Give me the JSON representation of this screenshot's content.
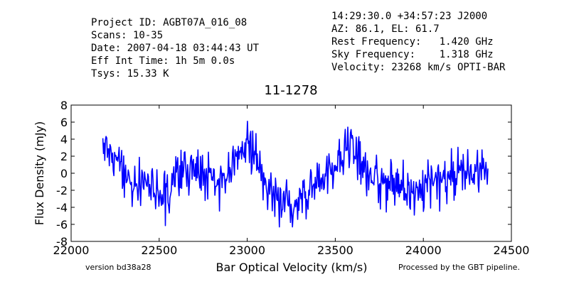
{
  "header": {
    "left": [
      "Project ID: AGBT07A_016_08",
      "Scans: 10-35",
      "Date: 2007-04-18 03:44:43 UT",
      "Eff Int Time: 1h 5m 0.0s",
      "Tsys: 15.33 K"
    ],
    "right": [
      "14:29:30.0 +34:57:23 J2000",
      "AZ: 86.1, EL: 61.7",
      "Rest Frequency:   1.420 GHz",
      "Sky Frequency:    1.318 GHz",
      "Velocity: 23268 km/s OPTI-BAR"
    ]
  },
  "footer": {
    "version": "version bd38a28",
    "pipeline": "Processed by the GBT pipeline."
  },
  "colors": {
    "line": "#0000ff",
    "pipeline_text": "#ff3333",
    "version_text": "#333333"
  },
  "chart_data": {
    "type": "line",
    "title": "11-1278",
    "xlabel": "Bar Optical Velocity (km/s)",
    "ylabel": "Flux Density (mJy)",
    "xlim": [
      22000,
      24500
    ],
    "ylim": [
      -8,
      8
    ],
    "xticks": [
      22000,
      22500,
      23000,
      23500,
      24000,
      24500
    ],
    "yticks": [
      -8,
      -6,
      -4,
      -2,
      0,
      2,
      4,
      6,
      8
    ],
    "x_range_of_data": [
      22180,
      24370
    ],
    "grid": false,
    "series": [
      {
        "color": "#0000ff",
        "envelope_x": [
          22180,
          22250,
          22300,
          22350,
          22400,
          22450,
          22500,
          22550,
          22600,
          22650,
          22700,
          22750,
          22800,
          22850,
          22900,
          22950,
          23000,
          23050,
          23100,
          23150,
          23200,
          23250,
          23300,
          23350,
          23400,
          23450,
          23500,
          23550,
          23600,
          23650,
          23700,
          23750,
          23800,
          23850,
          23900,
          23950,
          24000,
          24050,
          24100,
          24150,
          24200,
          24250,
          24300,
          24370
        ],
        "envelope_y": [
          3.0,
          2.0,
          0.0,
          -1.5,
          -1.0,
          -1.5,
          -2.5,
          -2.0,
          -1.0,
          0.5,
          1.0,
          0.0,
          -1.0,
          -1.0,
          0.5,
          2.5,
          3.0,
          2.0,
          -0.5,
          -2.5,
          -3.5,
          -4.0,
          -3.0,
          -2.0,
          -1.0,
          0.0,
          1.0,
          2.5,
          3.0,
          1.5,
          -0.5,
          -1.0,
          -0.5,
          -1.0,
          -2.0,
          -2.5,
          -1.5,
          -0.5,
          -1.0,
          -0.5,
          0.0,
          0.0,
          0.5,
          0.5
        ],
        "noise_sigma": 1.4,
        "channel_spacing_kms": 3.7
      }
    ]
  }
}
